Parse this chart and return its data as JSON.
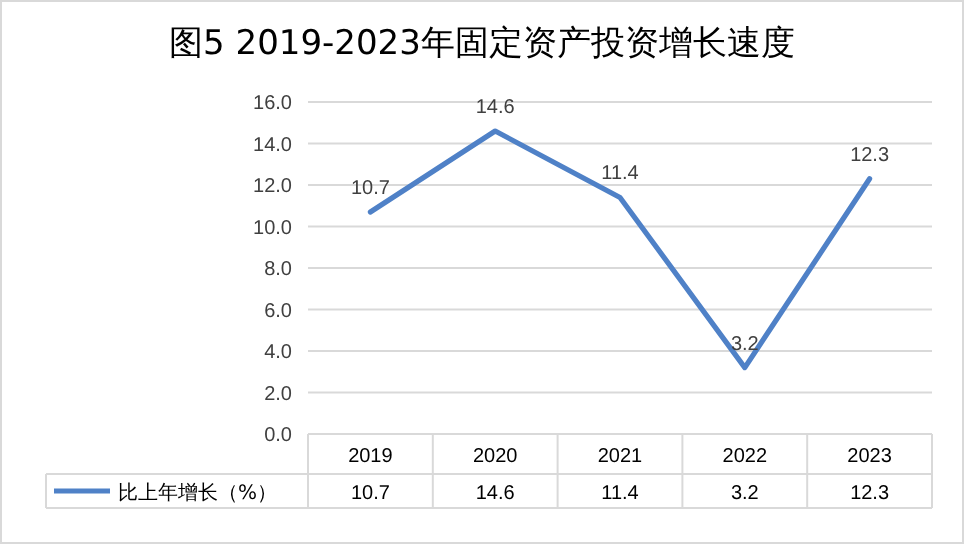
{
  "chart_data": {
    "type": "line",
    "title": "图5  2019-2023年固定资产投资增长速度",
    "categories": [
      "2019",
      "2020",
      "2021",
      "2022",
      "2023"
    ],
    "series": [
      {
        "name": "比上年增长（%）",
        "color": "#4f81c7",
        "values": [
          10.7,
          14.6,
          11.4,
          3.2,
          12.3
        ]
      }
    ],
    "ylim": [
      0,
      16
    ],
    "yticks": [
      {
        "value": 0,
        "label": "0.0"
      },
      {
        "value": 2,
        "label": "2.0"
      },
      {
        "value": 4,
        "label": "4.0"
      },
      {
        "value": 6,
        "label": "6.0"
      },
      {
        "value": 8,
        "label": "8.0"
      },
      {
        "value": 10,
        "label": "10.0"
      },
      {
        "value": 12,
        "label": "12.0"
      },
      {
        "value": 14,
        "label": "14.0"
      },
      {
        "value": 16,
        "label": "16.0"
      }
    ],
    "data_labels": true,
    "marker": "none",
    "line_style": "solid",
    "grid": "y",
    "legend": "bottom",
    "annotations": [
      "10.7",
      "14.6",
      "11.4",
      "3.2",
      "12.3"
    ]
  }
}
